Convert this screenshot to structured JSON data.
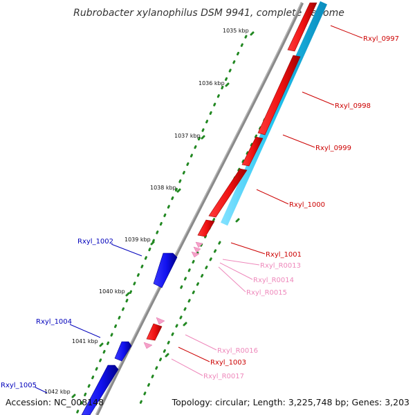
{
  "title": "Rubrobacter xylanophilus DSM 9941, complete genome",
  "footer": {
    "accession": "Accession: NC_008148",
    "topology": "Topology: circular; Length: 3,225,748 bp; Genes: 3,203"
  },
  "colors": {
    "backbone": "#8a8a8a",
    "forward_cds": "#ee1111",
    "forward_cds_shade": "#990000",
    "reverse_cds": "#1111ee",
    "reverse_cds_shade": "#000088",
    "rna": "#f5a0c8",
    "strand_bar": "#11bbee",
    "tick_dots": "#228822",
    "label_forward": "#cc0000",
    "label_reverse": "#0000bb",
    "label_rna": "#ee88bb"
  },
  "kbp_ticks": [
    {
      "label": "1035 kbp"
    },
    {
      "label": "1036 kbp"
    },
    {
      "label": "1037 kbp"
    },
    {
      "label": "1038 kbp"
    },
    {
      "label": "1039 kbp"
    },
    {
      "label": "1040 kbp"
    },
    {
      "label": "1041 kbp"
    },
    {
      "label": "1042 kbp"
    }
  ],
  "genes": [
    {
      "name": "Rxyl_0997",
      "type": "forward-cds"
    },
    {
      "name": "Rxyl_0998",
      "type": "forward-cds"
    },
    {
      "name": "Rxyl_0999",
      "type": "forward-cds"
    },
    {
      "name": "Rxyl_1000",
      "type": "forward-cds"
    },
    {
      "name": "Rxyl_1001",
      "type": "forward-cds"
    },
    {
      "name": "Rxyl_R0013",
      "type": "rna"
    },
    {
      "name": "Rxyl_R0014",
      "type": "rna"
    },
    {
      "name": "Rxyl_R0015",
      "type": "rna"
    },
    {
      "name": "Rxyl_R0016",
      "type": "rna"
    },
    {
      "name": "Rxyl_1003",
      "type": "forward-cds"
    },
    {
      "name": "Rxyl_R0017",
      "type": "rna"
    },
    {
      "name": "Rxyl_1002",
      "type": "reverse-cds"
    },
    {
      "name": "Rxyl_1004",
      "type": "reverse-cds"
    },
    {
      "name": "Rxyl_1005",
      "type": "reverse-cds"
    }
  ]
}
